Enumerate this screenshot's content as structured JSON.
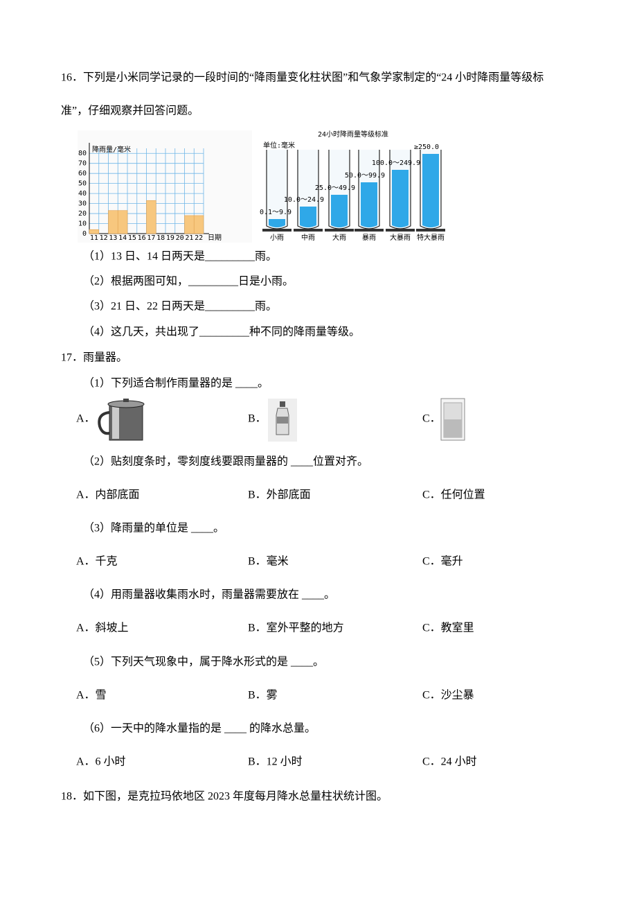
{
  "q16": {
    "lines": [
      "16．下列是小米同学记录的一段时间的“降雨量变化柱状图”和气象学家制定的“24  小时降雨量等级标",
      "准”，仔细观察并回答问题。"
    ],
    "rain_chart": {
      "type": "bar",
      "y_label": "降雨量/毫米",
      "x_label": "日期",
      "categories": [
        "11",
        "12",
        "13",
        "14",
        "15",
        "16",
        "17",
        "18",
        "19",
        "20",
        "21",
        "22"
      ],
      "values": [
        4,
        0,
        23,
        23,
        0,
        0,
        33,
        0,
        0,
        0,
        18,
        18
      ],
      "color": "#f7c77e",
      "ylim": [
        0,
        85
      ],
      "yticks": [
        0,
        10,
        20,
        30,
        40,
        50,
        60,
        70,
        80
      ],
      "grid": true
    },
    "grade_chart": {
      "title": "24小时降雨量等级标准",
      "unit": "单位:毫米",
      "levels": [
        {
          "name": "小雨",
          "range": "0.1～9.9"
        },
        {
          "name": "中雨",
          "range": "10.0～24.9"
        },
        {
          "name": "大雨",
          "range": "25.0～49.9"
        },
        {
          "name": "暴雨",
          "range": "50.0～99.9"
        },
        {
          "name": "大暴雨",
          "range": "100.0～249.9"
        },
        {
          "name": "特大暴雨",
          "range": "≥250.0"
        }
      ]
    },
    "parts": [
      "（1）13 日、14 日两天是_________雨。",
      "（2）根据两图可知，_________日是小雨。",
      "（3）21 日、22 日两天是_________雨。",
      "（4）这几天，共出现了_________种不同的降雨量等级。"
    ]
  },
  "q17": {
    "title": "17．雨量器。",
    "parts": [
      {
        "question": "（1）下列适合制作雨量器的是 ____。",
        "options": [
          "A．",
          "B．",
          "C．"
        ]
      },
      {
        "question": "（2）贴刻度条时，零刻度线要跟雨量器的 ____位置对齐。",
        "options": [
          "A．内部底面",
          "B．外部底面",
          "C．任何位置"
        ]
      },
      {
        "question": "（3）降雨量的单位是 ____。",
        "options": [
          "A．千克",
          "B．毫米",
          "C．毫升"
        ]
      },
      {
        "question": "（4）用雨量器收集雨水时，雨量器需要放在 ____。",
        "options": [
          "A．斜坡上",
          "B．室外平整的地方",
          "C．教室里"
        ]
      },
      {
        "question": "（5）下列天气现象中，属于降水形式的是 ____。",
        "options": [
          "A．雪",
          "B．雾",
          "C．沙尘暴"
        ]
      },
      {
        "question": "（6）一天中的降水量指的是 ____ 的降水总量。",
        "options": [
          "A．6 小时",
          "B．12 小时",
          "C．24 小时"
        ]
      }
    ]
  },
  "q18": {
    "title": "18．如下图，是克拉玛依地区 2023 年度每月降水总量柱状统计图。"
  }
}
